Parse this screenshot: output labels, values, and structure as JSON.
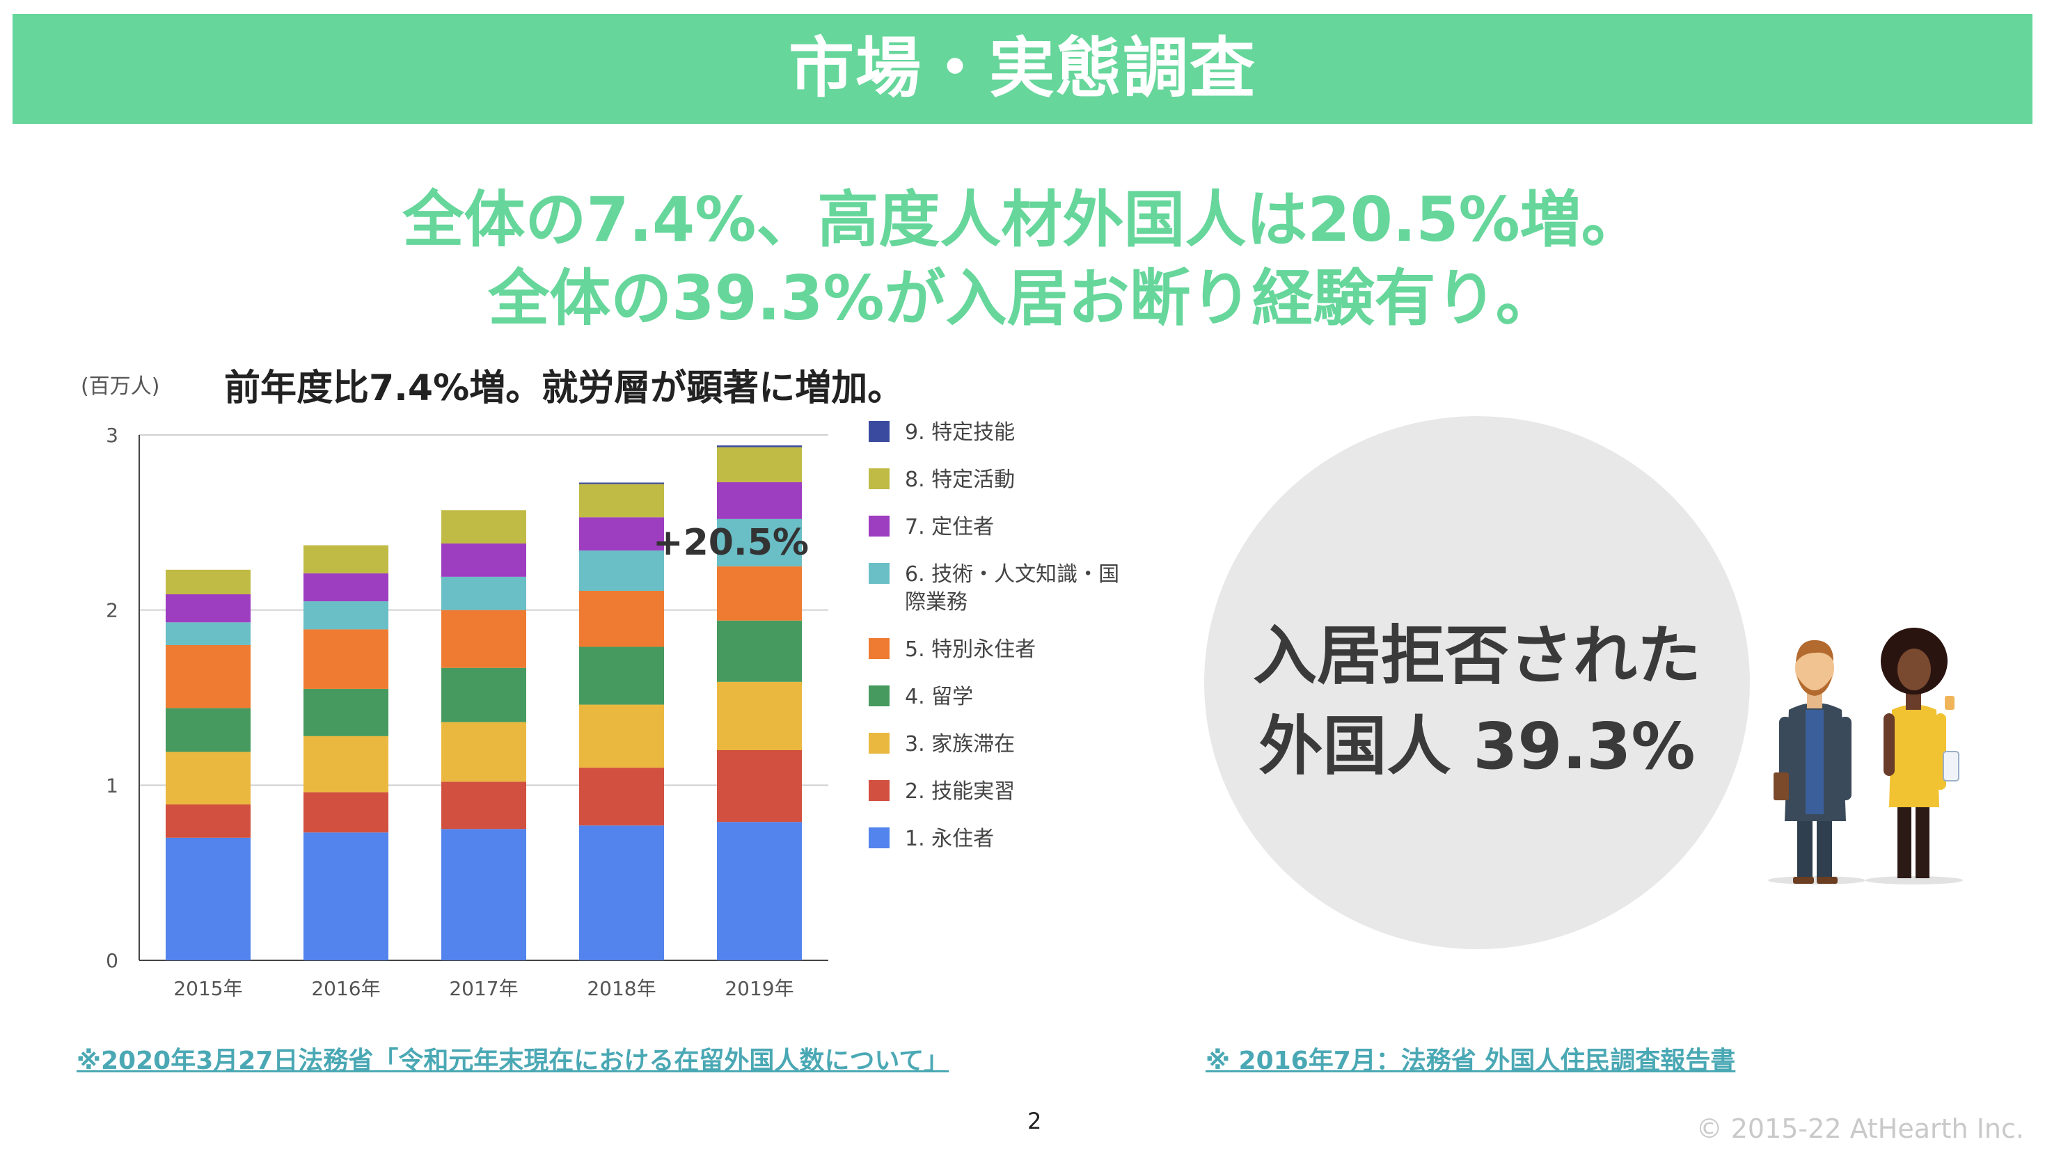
{
  "banner": {
    "title": "市場・実態調査"
  },
  "headline": {
    "line1": "全体の7.4%、高度人材外国人は20.5%増。",
    "line2": "全体の39.3%が入居お断り経験有り。"
  },
  "colors": {
    "banner": "#66d69b",
    "headline": "#66d69b",
    "source_link": "#4aa8b4"
  },
  "chart_data": {
    "type": "bar",
    "stacked": true,
    "title": "前年度比7.4%増。就労層が顕著に増加。",
    "ylabel": "(百万人)",
    "xlabel": "",
    "categories": [
      "2015年",
      "2016年",
      "2017年",
      "2018年",
      "2019年"
    ],
    "ylim": [
      0,
      3
    ],
    "yticks": [
      "0",
      "1",
      "2",
      "3"
    ],
    "grid": true,
    "legend_position": "right",
    "series": [
      {
        "name": "1. 永住者",
        "color": "#5383ec",
        "values": [
          0.7,
          0.73,
          0.75,
          0.77,
          0.79
        ]
      },
      {
        "name": "2. 技能実習",
        "color": "#d1503f",
        "values": [
          0.19,
          0.23,
          0.27,
          0.33,
          0.41
        ]
      },
      {
        "name": "3. 家族滞在",
        "color": "#ebb83f",
        "values": [
          0.3,
          0.32,
          0.34,
          0.36,
          0.39
        ]
      },
      {
        "name": "4. 留学",
        "color": "#479a5f",
        "values": [
          0.25,
          0.27,
          0.31,
          0.33,
          0.35
        ]
      },
      {
        "name": "5. 特別永住者",
        "color": "#ee7b31",
        "values": [
          0.36,
          0.34,
          0.33,
          0.32,
          0.31
        ]
      },
      {
        "name": "6. 技術・人文知識・国際業務",
        "color": "#6abec6",
        "values": [
          0.13,
          0.16,
          0.19,
          0.23,
          0.27
        ]
      },
      {
        "name": "7. 定住者",
        "color": "#9d3dc0",
        "values": [
          0.16,
          0.16,
          0.19,
          0.19,
          0.21
        ]
      },
      {
        "name": "8. 特定活動",
        "color": "#c0bb45",
        "values": [
          0.14,
          0.16,
          0.19,
          0.19,
          0.2
        ]
      },
      {
        "name": "9. 特定技能",
        "color": "#3a4a9e",
        "values": [
          0,
          0,
          0,
          0.005,
          0.01
        ]
      }
    ],
    "annotations": [
      "+20.5%"
    ]
  },
  "sources": {
    "left": "※2020年3月27日法務省「令和元年末現在における在留外国人数について」",
    "right": "※ 2016年7月：法務省 外国人住民調査報告書"
  },
  "stat": {
    "line1": "入居拒否された",
    "line2": "外国人 39.3%"
  },
  "footer": {
    "page_number": "2",
    "copyright": "© 2015-22 AtHearth Inc."
  }
}
